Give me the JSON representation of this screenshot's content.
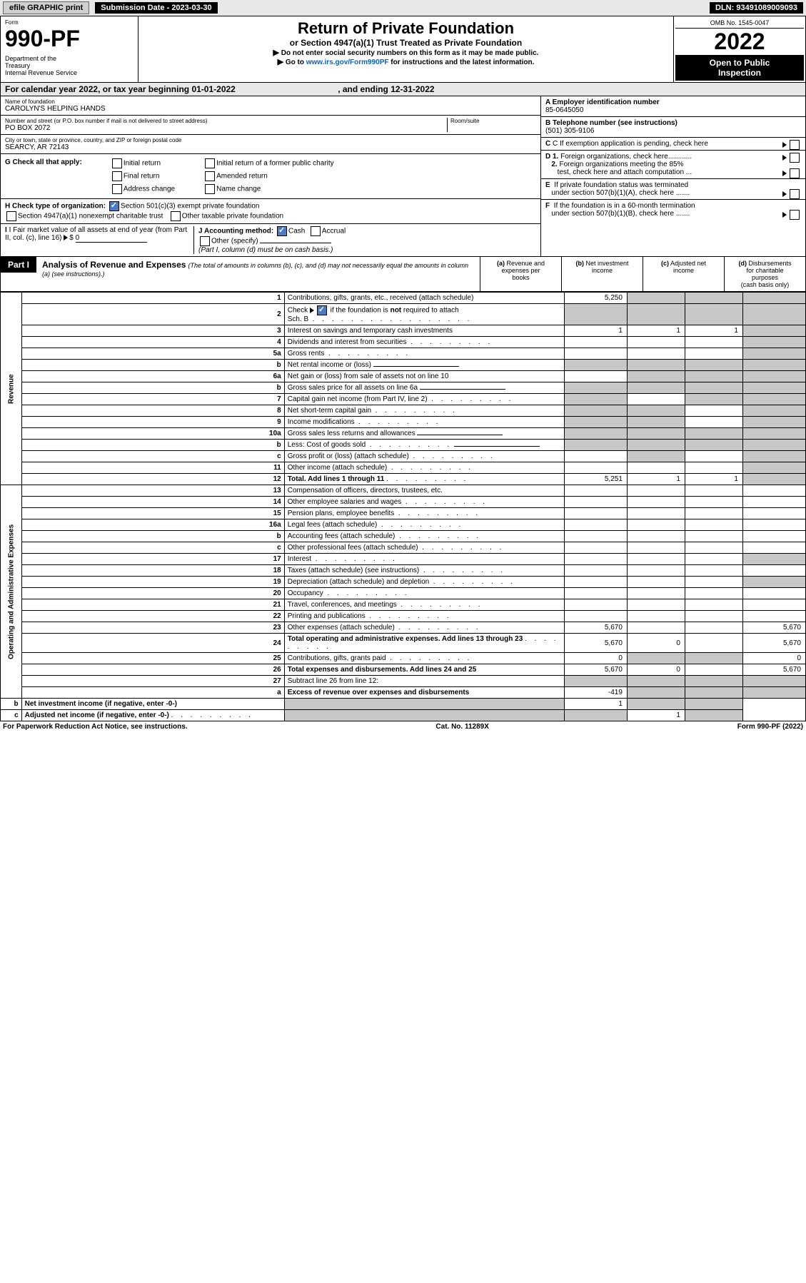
{
  "header": {
    "efile": "efile GRAPHIC print",
    "submission": "Submission Date - 2023-03-30",
    "dln": "DLN: 93491089009093",
    "omb": "OMB No. 1545-0047",
    "form_label": "Form",
    "form_number": "990-PF",
    "dept": "Department of the Treasury\nInternal Revenue Service",
    "title": "Return of Private Foundation",
    "subtitle": "or Section 4947(a)(1) Trust Treated as Private Foundation",
    "instr1": "Do not enter social security numbers on this form as it may be made public.",
    "instr2_prefix": "Go to ",
    "instr2_link": "www.irs.gov/Form990PF",
    "instr2_suffix": " for instructions and the latest information.",
    "year": "2022",
    "open": "Open to Public Inspection"
  },
  "cal_year": {
    "prefix": "For calendar year 2022, or tax year beginning ",
    "begin": "01-01-2022",
    "mid": ", and ending ",
    "end": "12-31-2022"
  },
  "info": {
    "name_lbl": "Name of foundation",
    "name": "CAROLYN'S HELPING HANDS",
    "addr_lbl": "Number and street (or P.O. box number if mail is not delivered to street address)",
    "addr": "PO BOX 2072",
    "room_lbl": "Room/suite",
    "city_lbl": "City or town, state or province, country, and ZIP or foreign postal code",
    "city": "SEARCY, AR  72143",
    "a_lbl": "A Employer identification number",
    "a_val": "85-0645050",
    "b_lbl": "B Telephone number (see instructions)",
    "b_val": "(501) 305-9106",
    "c_lbl": "C If exemption application is pending, check here",
    "d1_lbl": "D 1. Foreign organizations, check here............",
    "d2_lbl": "2. Foreign organizations meeting the 85% test, check here and attach computation ...",
    "e_lbl": "E  If private foundation status was terminated under section 507(b)(1)(A), check here .......",
    "f_lbl": "F  If the foundation is in a 60-month termination under section 507(b)(1)(B), check here .......",
    "g_lbl": "G Check all that apply:",
    "g_opts": [
      "Initial return",
      "Final return",
      "Address change",
      "Initial return of a former public charity",
      "Amended return",
      "Name change"
    ],
    "h_lbl": "H Check type of organization:",
    "h1": "Section 501(c)(3) exempt private foundation",
    "h2": "Section 4947(a)(1) nonexempt charitable trust",
    "h3": "Other taxable private foundation",
    "i_lbl": "I Fair market value of all assets at end of year (from Part II, col. (c), line 16)",
    "i_val": "0",
    "j_lbl": "J Accounting method:",
    "j1": "Cash",
    "j2": "Accrual",
    "j3": "Other (specify)",
    "j_note": "(Part I, column (d) must be on cash basis.)"
  },
  "part1": {
    "tag": "Part I",
    "title": "Analysis of Revenue and Expenses",
    "note": "(The total of amounts in columns (b), (c), and (d) may not necessarily equal the amounts in column (a) (see instructions).)",
    "col_a": "(a)  Revenue and expenses per books",
    "col_b": "(b)  Net investment income",
    "col_c": "(c)  Adjusted net income",
    "col_d": "(d)  Disbursements for charitable purposes (cash basis only)"
  },
  "side": {
    "rev": "Revenue",
    "ope": "Operating and Administrative Expenses"
  },
  "rows": [
    {
      "n": "1",
      "d": "Contributions, gifts, grants, etc., received (attach schedule)",
      "a": "5,250",
      "b": "",
      "c": "",
      "dd": "",
      "sb": 1,
      "sc": 1,
      "sd": 1
    },
    {
      "n": "2",
      "d": "Check ▶ ☑ if the foundation is not required to attach Sch. B",
      "a": "",
      "b": "",
      "c": "",
      "dd": "",
      "sa": 1,
      "sb": 1,
      "sc": 1,
      "sd": 1,
      "dots": 1
    },
    {
      "n": "3",
      "d": "Interest on savings and temporary cash investments",
      "a": "1",
      "b": "1",
      "c": "1",
      "dd": "",
      "sd": 1
    },
    {
      "n": "4",
      "d": "Dividends and interest from securities",
      "a": "",
      "b": "",
      "c": "",
      "dd": "",
      "sd": 1,
      "dots": 1
    },
    {
      "n": "5a",
      "d": "Gross rents",
      "a": "",
      "b": "",
      "c": "",
      "dd": "",
      "sd": 1,
      "dots": 1
    },
    {
      "n": "b",
      "d": "Net rental income or (loss)",
      "a": "",
      "b": "",
      "c": "",
      "dd": "",
      "sa": 1,
      "sb": 1,
      "sc": 1,
      "sd": 1,
      "ul": 1
    },
    {
      "n": "6a",
      "d": "Net gain or (loss) from sale of assets not on line 10",
      "a": "",
      "b": "",
      "c": "",
      "dd": "",
      "sb": 1,
      "sc": 1,
      "sd": 1
    },
    {
      "n": "b",
      "d": "Gross sales price for all assets on line 6a",
      "a": "",
      "b": "",
      "c": "",
      "dd": "",
      "sa": 1,
      "sb": 1,
      "sc": 1,
      "sd": 1,
      "ul": 1
    },
    {
      "n": "7",
      "d": "Capital gain net income (from Part IV, line 2)",
      "a": "",
      "b": "",
      "c": "",
      "dd": "",
      "sa": 1,
      "sc": 1,
      "sd": 1,
      "dots": 1
    },
    {
      "n": "8",
      "d": "Net short-term capital gain",
      "a": "",
      "b": "",
      "c": "",
      "dd": "",
      "sa": 1,
      "sb": 1,
      "sd": 1,
      "dots": 1
    },
    {
      "n": "9",
      "d": "Income modifications",
      "a": "",
      "b": "",
      "c": "",
      "dd": "",
      "sa": 1,
      "sb": 1,
      "sd": 1,
      "dots": 1
    },
    {
      "n": "10a",
      "d": "Gross sales less returns and allowances",
      "a": "",
      "b": "",
      "c": "",
      "dd": "",
      "sa": 1,
      "sb": 1,
      "sc": 1,
      "sd": 1,
      "ul": 1
    },
    {
      "n": "b",
      "d": "Less: Cost of goods sold",
      "a": "",
      "b": "",
      "c": "",
      "dd": "",
      "sa": 1,
      "sb": 1,
      "sc": 1,
      "sd": 1,
      "ul": 1,
      "dots": 1
    },
    {
      "n": "c",
      "d": "Gross profit or (loss) (attach schedule)",
      "a": "",
      "b": "",
      "c": "",
      "dd": "",
      "sb": 1,
      "sd": 1,
      "dots": 1
    },
    {
      "n": "11",
      "d": "Other income (attach schedule)",
      "a": "",
      "b": "",
      "c": "",
      "dd": "",
      "sd": 1,
      "dots": 1
    },
    {
      "n": "12",
      "d": "Total. Add lines 1 through 11",
      "a": "5,251",
      "b": "1",
      "c": "1",
      "dd": "",
      "sd": 1,
      "bold": 1,
      "dots": 1
    },
    {
      "n": "13",
      "d": "Compensation of officers, directors, trustees, etc.",
      "a": "",
      "b": "",
      "c": "",
      "dd": ""
    },
    {
      "n": "14",
      "d": "Other employee salaries and wages",
      "a": "",
      "b": "",
      "c": "",
      "dd": "",
      "dots": 1
    },
    {
      "n": "15",
      "d": "Pension plans, employee benefits",
      "a": "",
      "b": "",
      "c": "",
      "dd": "",
      "dots": 1
    },
    {
      "n": "16a",
      "d": "Legal fees (attach schedule)",
      "a": "",
      "b": "",
      "c": "",
      "dd": "",
      "dots": 1
    },
    {
      "n": "b",
      "d": "Accounting fees (attach schedule)",
      "a": "",
      "b": "",
      "c": "",
      "dd": "",
      "dots": 1
    },
    {
      "n": "c",
      "d": "Other professional fees (attach schedule)",
      "a": "",
      "b": "",
      "c": "",
      "dd": "",
      "dots": 1
    },
    {
      "n": "17",
      "d": "Interest",
      "a": "",
      "b": "",
      "c": "",
      "dd": "",
      "sd": 1,
      "dots": 1
    },
    {
      "n": "18",
      "d": "Taxes (attach schedule) (see instructions)",
      "a": "",
      "b": "",
      "c": "",
      "dd": "",
      "dots": 1
    },
    {
      "n": "19",
      "d": "Depreciation (attach schedule) and depletion",
      "a": "",
      "b": "",
      "c": "",
      "dd": "",
      "sd": 1,
      "dots": 1
    },
    {
      "n": "20",
      "d": "Occupancy",
      "a": "",
      "b": "",
      "c": "",
      "dd": "",
      "dots": 1
    },
    {
      "n": "21",
      "d": "Travel, conferences, and meetings",
      "a": "",
      "b": "",
      "c": "",
      "dd": "",
      "dots": 1
    },
    {
      "n": "22",
      "d": "Printing and publications",
      "a": "",
      "b": "",
      "c": "",
      "dd": "",
      "dots": 1
    },
    {
      "n": "23",
      "d": "Other expenses (attach schedule)",
      "a": "5,670",
      "b": "",
      "c": "",
      "dd": "5,670",
      "dots": 1
    },
    {
      "n": "24",
      "d": "Total operating and administrative expenses. Add lines 13 through 23",
      "a": "5,670",
      "b": "0",
      "c": "",
      "dd": "5,670",
      "bold": 1,
      "dots": 1
    },
    {
      "n": "25",
      "d": "Contributions, gifts, grants paid",
      "a": "0",
      "b": "",
      "c": "",
      "dd": "0",
      "sb": 1,
      "sc": 1,
      "dots": 1
    },
    {
      "n": "26",
      "d": "Total expenses and disbursements. Add lines 24 and 25",
      "a": "5,670",
      "b": "0",
      "c": "",
      "dd": "5,670",
      "bold": 1
    },
    {
      "n": "27",
      "d": "Subtract line 26 from line 12:",
      "a": "",
      "b": "",
      "c": "",
      "dd": "",
      "sa": 1,
      "sb": 1,
      "sc": 1,
      "sd": 1
    },
    {
      "n": "a",
      "d": "Excess of revenue over expenses and disbursements",
      "a": "-419",
      "b": "",
      "c": "",
      "dd": "",
      "sb": 1,
      "sc": 1,
      "sd": 1,
      "bold": 1
    },
    {
      "n": "b",
      "d": "Net investment income (if negative, enter -0-)",
      "a": "",
      "b": "1",
      "c": "",
      "dd": "",
      "sa": 1,
      "sc": 1,
      "sd": 1,
      "bold": 1
    },
    {
      "n": "c",
      "d": "Adjusted net income (if negative, enter -0-)",
      "a": "",
      "b": "",
      "c": "1",
      "dd": "",
      "sa": 1,
      "sb": 1,
      "sd": 1,
      "bold": 1,
      "dots": 1
    }
  ],
  "footer": {
    "left": "For Paperwork Reduction Act Notice, see instructions.",
    "mid": "Cat. No. 11289X",
    "right": "Form 990-PF (2022)"
  }
}
